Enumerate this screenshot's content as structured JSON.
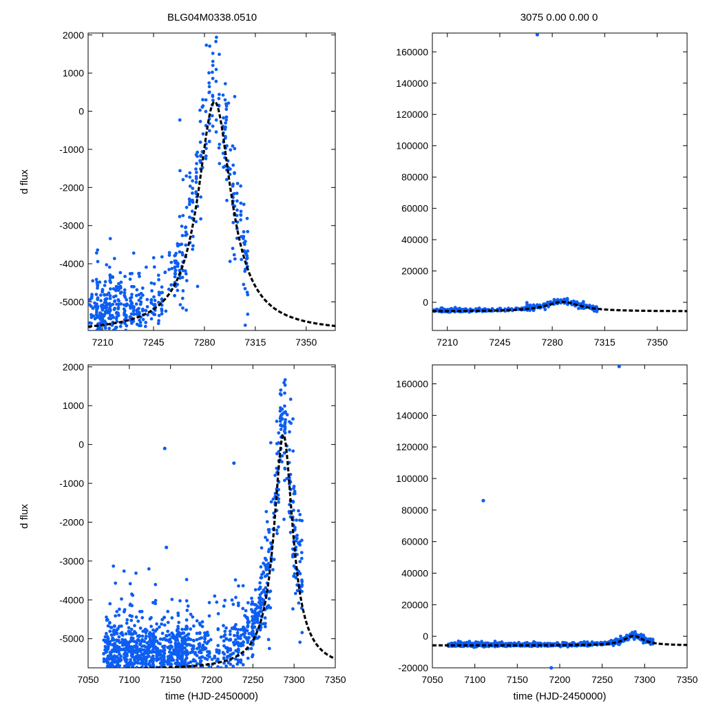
{
  "title_left": "BLG04M0338.0510",
  "title_right": "3075  0.00  0.00  0",
  "colors": {
    "points": "#0d5ef2",
    "model": "#000000",
    "frame": "#000000"
  },
  "chart_data": [
    {
      "id": "top-left",
      "type": "scatter",
      "xlim": [
        7200,
        7370
      ],
      "ylim": [
        -5750,
        2050
      ],
      "xticks": [
        7210,
        7245,
        7280,
        7315,
        7350
      ],
      "yticks": [
        -5000,
        -4000,
        -3000,
        -2000,
        -1000,
        0,
        1000,
        2000
      ],
      "ylabel": "d flux",
      "xlabel": "",
      "model": {
        "t0": 7287,
        "peak": 250,
        "base": -5800,
        "width": 14,
        "style": "dashed"
      },
      "points": {
        "n": 620,
        "seed": 11,
        "x_range": [
          7200,
          7310
        ]
      }
    },
    {
      "id": "top-right",
      "type": "scatter",
      "xlim": [
        7200,
        7370
      ],
      "ylim": [
        -18000,
        172000
      ],
      "xticks": [
        7210,
        7245,
        7280,
        7315,
        7350
      ],
      "yticks": [
        0,
        20000,
        40000,
        60000,
        80000,
        100000,
        120000,
        140000,
        160000
      ],
      "ylabel": "",
      "xlabel": "",
      "model": {
        "t0": 7287,
        "peak": 250,
        "base": -5800,
        "width": 14,
        "style": "dashed"
      },
      "points": {
        "n": 620,
        "seed": 11,
        "x_range": [
          7200,
          7310
        ]
      },
      "outliers": [
        {
          "x": 7270,
          "y": 171000
        }
      ]
    },
    {
      "id": "bottom-left",
      "type": "scatter",
      "xlim": [
        7050,
        7350
      ],
      "ylim": [
        -5750,
        2050
      ],
      "xticks": [
        7050,
        7100,
        7150,
        7200,
        7250,
        7300,
        7350
      ],
      "yticks": [
        -5000,
        -4000,
        -3000,
        -2000,
        -1000,
        0,
        1000,
        2000
      ],
      "ylabel": "d flux",
      "xlabel": "time (HJD-2450000)",
      "model": {
        "t0": 7287,
        "peak": 250,
        "base": -5800,
        "width": 14,
        "style": "dashed"
      },
      "points": {
        "n": 1500,
        "seed": 23,
        "x_range": [
          7068,
          7310
        ]
      },
      "outliers": [
        {
          "x": 7143,
          "y": -100
        },
        {
          "x": 7227,
          "y": -480
        },
        {
          "x": 7145,
          "y": -2650
        }
      ]
    },
    {
      "id": "bottom-right",
      "type": "scatter",
      "xlim": [
        7050,
        7350
      ],
      "ylim": [
        -20000,
        172000
      ],
      "xticks": [
        7050,
        7100,
        7150,
        7200,
        7250,
        7300,
        7350
      ],
      "yticks": [
        -20000,
        0,
        20000,
        40000,
        60000,
        80000,
        100000,
        120000,
        140000,
        160000
      ],
      "ylabel": "",
      "xlabel": "time (HJD-2450000)",
      "model": {
        "t0": 7287,
        "peak": 250,
        "base": -5800,
        "width": 14,
        "style": "dashed"
      },
      "points": {
        "n": 1500,
        "seed": 23,
        "x_range": [
          7068,
          7310
        ]
      },
      "outliers": [
        {
          "x": 7110,
          "y": 86000
        },
        {
          "x": 7270,
          "y": 171000
        },
        {
          "x": 7190,
          "y": -20000
        }
      ]
    }
  ]
}
